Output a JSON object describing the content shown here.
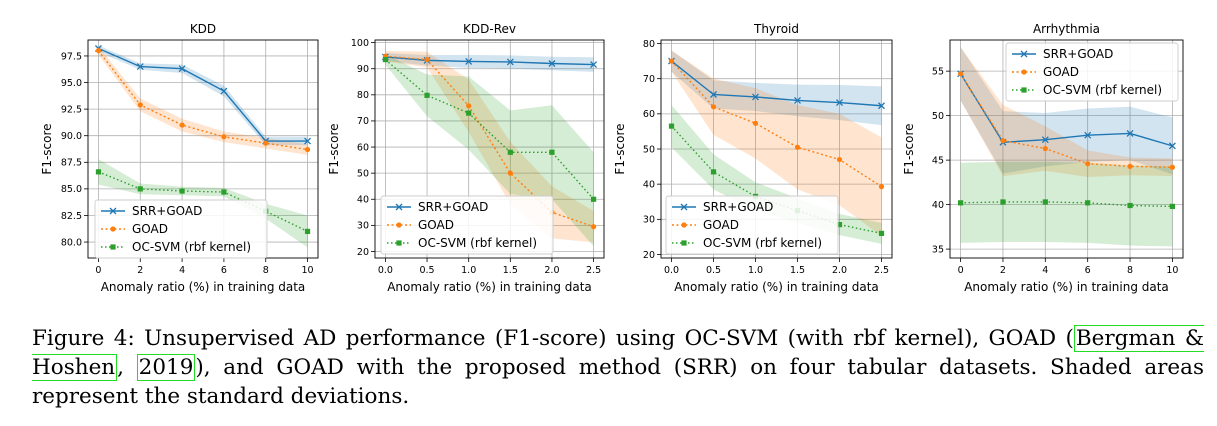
{
  "colors": {
    "srr": "#1f77b4",
    "goad": "#ff7f0e",
    "ocsvm": "#2ca02c"
  },
  "legend_labels": [
    "SRR+GOAD",
    "GOAD",
    "OC-SVM (rbf kernel)"
  ],
  "chart_data": [
    {
      "type": "line",
      "title": "KDD",
      "xlabel": "Anomaly ratio (%) in training data",
      "ylabel": "F1-score",
      "xlim": [
        -0.5,
        10.5
      ],
      "ylim": [
        78.5,
        99
      ],
      "xticks": [
        0,
        2,
        4,
        6,
        8,
        10
      ],
      "xtick_labels": [
        "0",
        "2",
        "4",
        "6",
        "8",
        "10"
      ],
      "yticks": [
        80,
        82.5,
        85,
        87.5,
        90,
        92.5,
        95,
        97.5
      ],
      "ytick_labels": [
        "80.0",
        "82.5",
        "85.0",
        "87.5",
        "90.0",
        "92.5",
        "95.0",
        "97.5"
      ],
      "grid": true,
      "legend": "lower-left",
      "x": [
        0,
        2,
        4,
        6,
        8,
        10
      ],
      "series": [
        {
          "name": "SRR+GOAD",
          "values": [
            98.2,
            96.5,
            96.3,
            94.2,
            89.5,
            89.5
          ],
          "std": [
            0.3,
            0.3,
            0.4,
            0.5,
            0.4,
            0.4
          ]
        },
        {
          "name": "GOAD",
          "values": [
            98.0,
            92.9,
            91.0,
            89.9,
            89.3,
            88.7
          ],
          "std": [
            0.4,
            0.6,
            0.6,
            0.5,
            0.5,
            0.5
          ]
        },
        {
          "name": "OC-SVM (rbf kernel)",
          "values": [
            86.6,
            85.0,
            84.8,
            84.7,
            82.9,
            81.0
          ],
          "std": [
            1.2,
            0.5,
            0.4,
            0.4,
            0.7,
            1.5
          ]
        }
      ]
    },
    {
      "type": "line",
      "title": "KDD-Rev",
      "xlabel": "Anomaly ratio (%) in training data",
      "ylabel": "F1-score",
      "xlim": [
        -0.125,
        2.625
      ],
      "ylim": [
        17.5,
        101
      ],
      "xticks": [
        0,
        0.5,
        1,
        1.5,
        2,
        2.5
      ],
      "xtick_labels": [
        "0.0",
        "0.5",
        "1.0",
        "1.5",
        "2.0",
        "2.5"
      ],
      "yticks": [
        20,
        30,
        40,
        50,
        60,
        70,
        80,
        90,
        100
      ],
      "ytick_labels": [
        "20",
        "30",
        "40",
        "50",
        "60",
        "70",
        "80",
        "90",
        "100"
      ],
      "grid": true,
      "legend": "lower-left",
      "x": [
        0,
        0.5,
        1,
        1.5,
        2,
        2.5
      ],
      "series": [
        {
          "name": "SRR+GOAD",
          "values": [
            94.5,
            93.2,
            92.8,
            92.6,
            92.0,
            91.6
          ],
          "std": [
            1.5,
            2.0,
            2.5,
            2.5,
            2.6,
            2.8
          ]
        },
        {
          "name": "GOAD",
          "values": [
            94.8,
            93.5,
            75.8,
            50.0,
            35.0,
            29.5
          ],
          "std": [
            2.0,
            3.0,
            10.0,
            12.0,
            10.0,
            6.0
          ]
        },
        {
          "name": "OC-SVM (rbf kernel)",
          "values": [
            93.5,
            79.8,
            73.0,
            58.0,
            58.0,
            40.0
          ],
          "std": [
            2.0,
            8.0,
            14.0,
            16.0,
            18.0,
            18.0
          ]
        }
      ]
    },
    {
      "type": "line",
      "title": "Thyroid",
      "xlabel": "Anomaly ratio (%) in training data",
      "ylabel": "F1-score",
      "xlim": [
        -0.125,
        2.625
      ],
      "ylim": [
        19,
        81
      ],
      "xticks": [
        0,
        0.5,
        1,
        1.5,
        2,
        2.5
      ],
      "xtick_labels": [
        "0.0",
        "0.5",
        "1.0",
        "1.5",
        "2.0",
        "2.5"
      ],
      "yticks": [
        20,
        30,
        40,
        50,
        60,
        70,
        80
      ],
      "ytick_labels": [
        "20",
        "30",
        "40",
        "50",
        "60",
        "70",
        "80"
      ],
      "grid": true,
      "legend": "lower-left",
      "x": [
        0,
        0.5,
        1,
        1.5,
        2,
        2.5
      ],
      "series": [
        {
          "name": "SRR+GOAD",
          "values": [
            75.0,
            65.5,
            64.8,
            63.8,
            63.2,
            62.3
          ],
          "std": [
            3.0,
            4.0,
            4.0,
            4.5,
            5.0,
            5.5
          ]
        },
        {
          "name": "GOAD",
          "values": [
            75.0,
            62.0,
            57.3,
            50.5,
            47.0,
            39.3
          ],
          "std": [
            3.0,
            8.0,
            10.0,
            12.0,
            13.0,
            14.0
          ]
        },
        {
          "name": "OC-SVM (rbf kernel)",
          "values": [
            56.5,
            43.5,
            36.5,
            32.5,
            28.5,
            26.0
          ],
          "std": [
            6.0,
            5.0,
            4.0,
            3.5,
            3.0,
            3.0
          ]
        }
      ]
    },
    {
      "type": "line",
      "title": "Arrhythmia",
      "xlabel": "Anomaly ratio (%) in training data",
      "ylabel": "F1-score",
      "xlim": [
        -0.5,
        10.5
      ],
      "ylim": [
        34,
        58.5
      ],
      "xticks": [
        0,
        2,
        4,
        6,
        8,
        10
      ],
      "xtick_labels": [
        "0",
        "2",
        "4",
        "6",
        "8",
        "10"
      ],
      "yticks": [
        35,
        40,
        45,
        50,
        55
      ],
      "ytick_labels": [
        "35",
        "40",
        "45",
        "50",
        "55"
      ],
      "grid": true,
      "legend": "upper-right",
      "x": [
        0,
        2,
        4,
        6,
        8,
        10
      ],
      "series": [
        {
          "name": "SRR+GOAD",
          "values": [
            54.7,
            47.0,
            47.3,
            47.8,
            48.0,
            46.6
          ],
          "std": [
            3.0,
            3.5,
            3.0,
            3.0,
            3.0,
            3.2
          ]
        },
        {
          "name": "GOAD",
          "values": [
            54.7,
            47.2,
            46.3,
            44.6,
            44.3,
            44.2
          ],
          "std": [
            3.0,
            4.0,
            2.5,
            1.5,
            1.0,
            1.0
          ]
        },
        {
          "name": "OC-SVM (rbf kernel)",
          "values": [
            40.2,
            40.3,
            40.3,
            40.2,
            39.9,
            39.8
          ],
          "std": [
            4.5,
            4.5,
            4.5,
            4.5,
            4.5,
            4.5
          ]
        }
      ]
    }
  ],
  "caption": {
    "prefix": "Figure 4: Unsupervised AD performance (F1-score) using OC-SVM (with rbf kernel), GOAD (",
    "cite_author": "Bergman & Hoshen",
    "cite_sep": ", ",
    "cite_year": "2019",
    "suffix": "), and GOAD with the proposed method (SRR) on four tabular datasets. Shaded areas represent the standard deviations."
  }
}
